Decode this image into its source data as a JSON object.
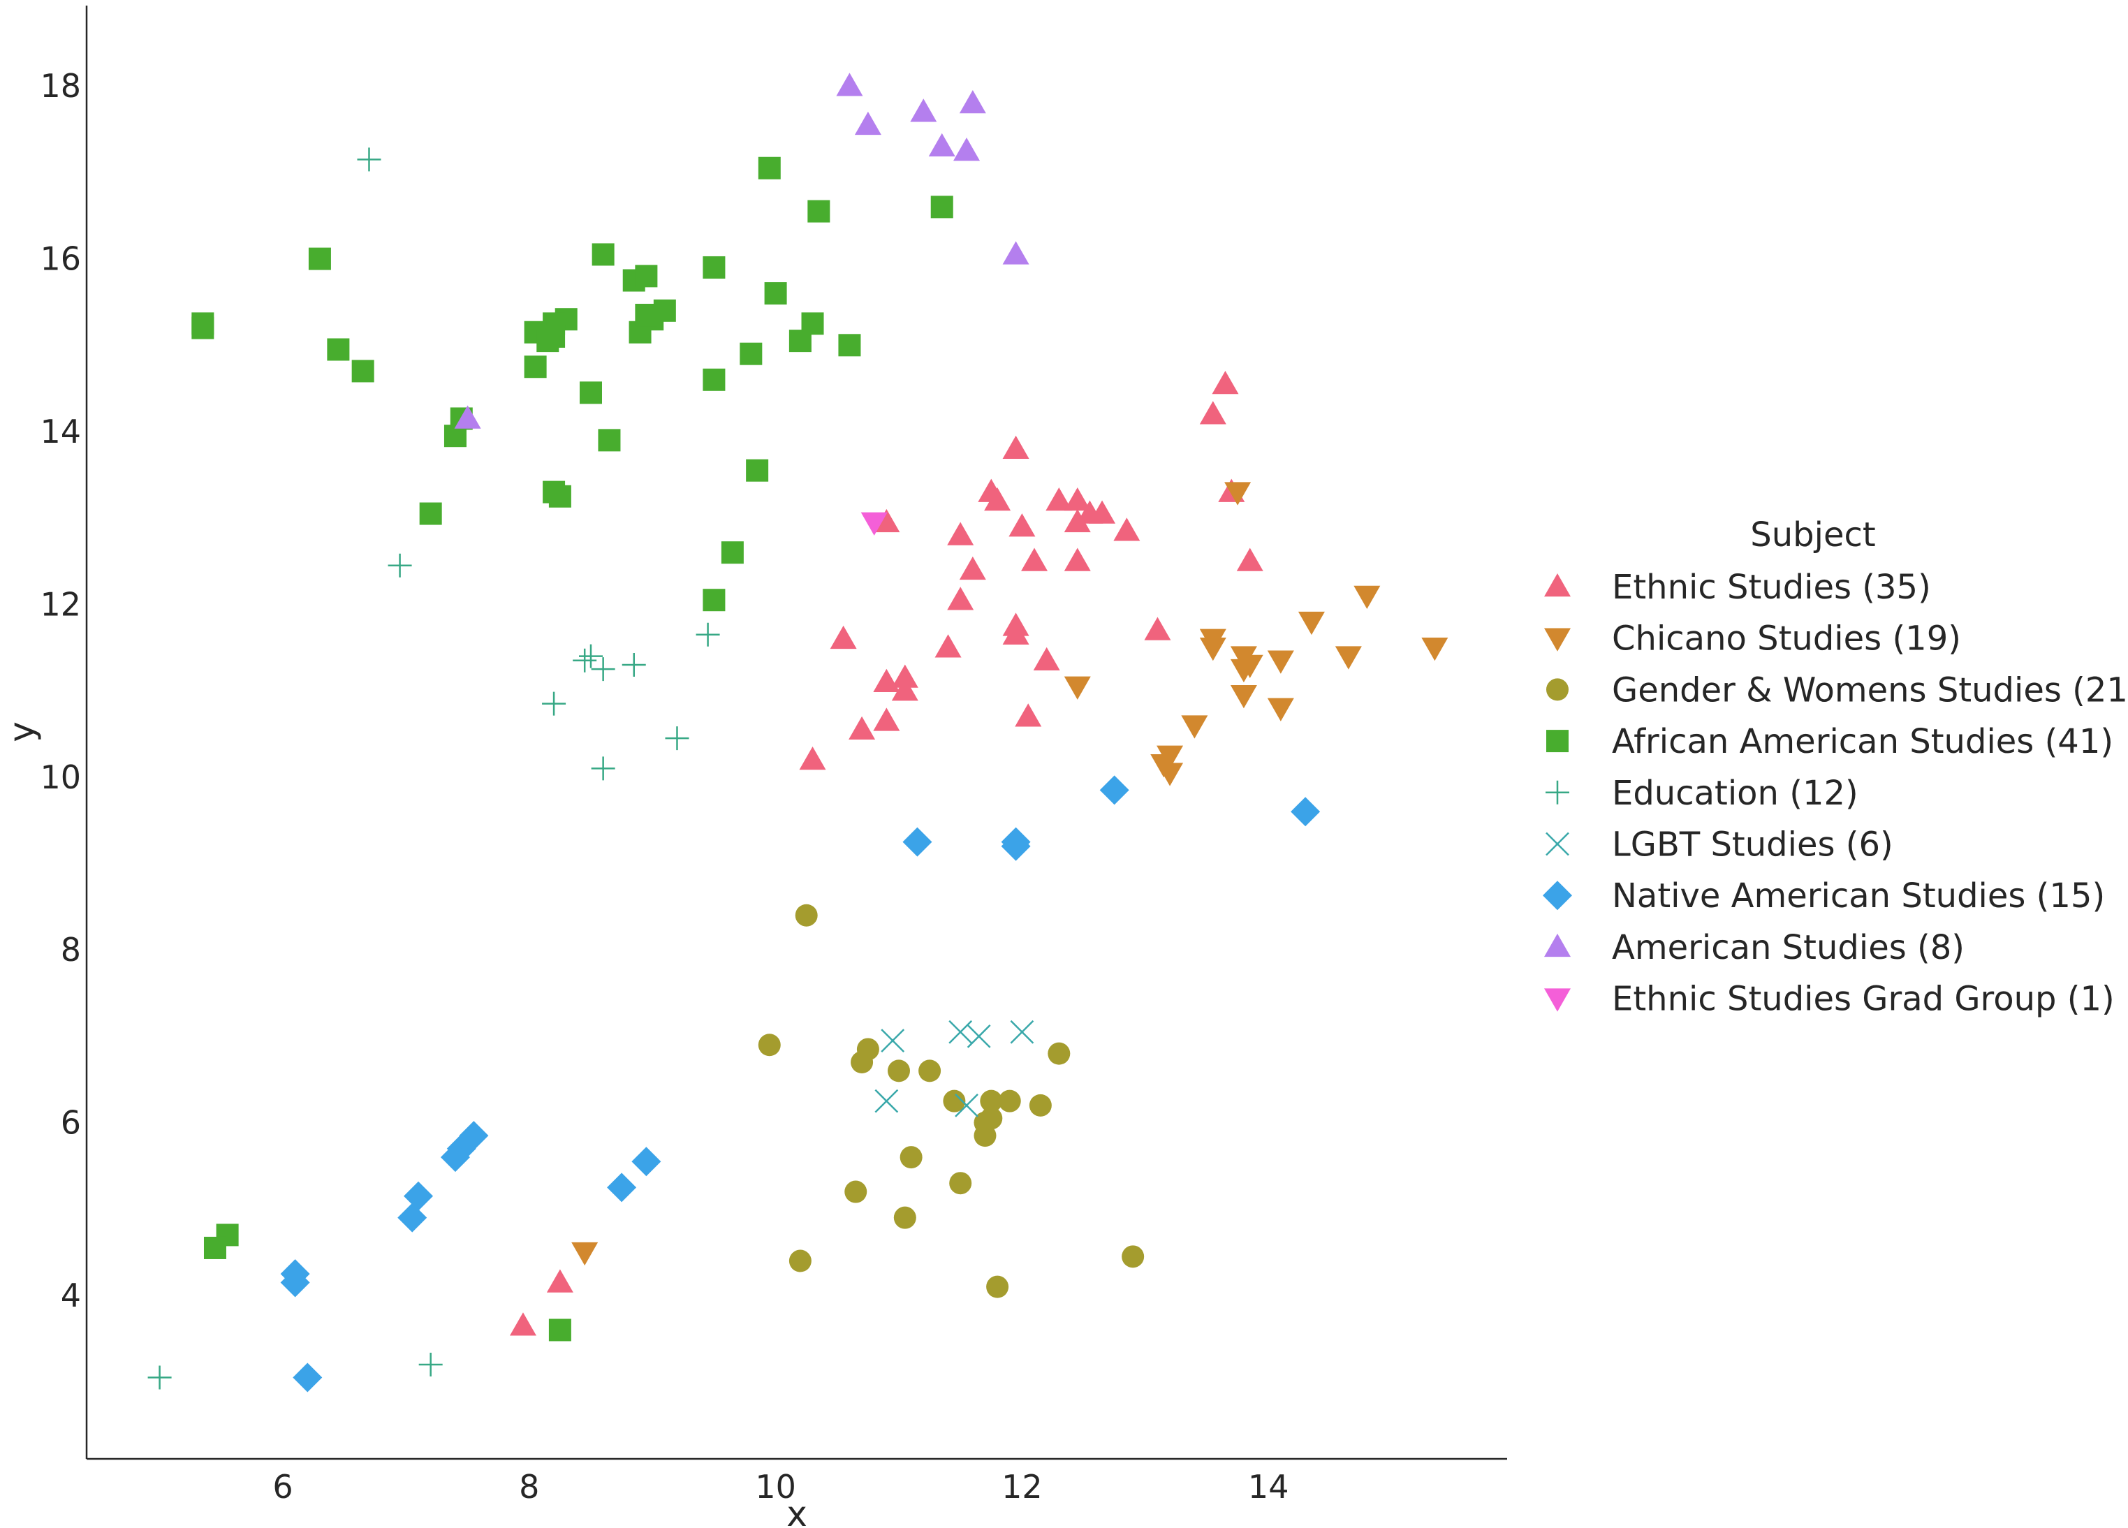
{
  "chart_data": {
    "type": "scatter",
    "title": "",
    "xlabel": "x",
    "ylabel": "y",
    "xlim": [
      4.4,
      15.9
    ],
    "ylim": [
      2.1,
      18.9
    ],
    "x_ticks": [
      "6",
      "8",
      "10",
      "12",
      "14"
    ],
    "y_ticks": [
      "4",
      "6",
      "8",
      "10",
      "12",
      "14",
      "16",
      "18"
    ],
    "grid": false,
    "legend_title": "Subject",
    "legend_position": "right",
    "series": [
      {
        "name": "Ethnic Studies (35)",
        "marker": "triangle-up",
        "color": "#f0637d",
        "points": [
          [
            13.65,
            14.55
          ],
          [
            13.55,
            14.2
          ],
          [
            11.95,
            13.8
          ],
          [
            13.7,
            13.3
          ],
          [
            11.75,
            13.3
          ],
          [
            11.8,
            13.2
          ],
          [
            12.3,
            13.2
          ],
          [
            12.45,
            13.2
          ],
          [
            12.55,
            13.05
          ],
          [
            12.65,
            13.05
          ],
          [
            12.45,
            12.95
          ],
          [
            10.9,
            12.95
          ],
          [
            12.0,
            12.9
          ],
          [
            12.85,
            12.85
          ],
          [
            11.5,
            12.8
          ],
          [
            13.85,
            12.5
          ],
          [
            12.1,
            12.5
          ],
          [
            12.45,
            12.5
          ],
          [
            11.6,
            12.4
          ],
          [
            11.5,
            12.05
          ],
          [
            11.95,
            11.75
          ],
          [
            11.95,
            11.65
          ],
          [
            13.1,
            11.7
          ],
          [
            10.55,
            11.6
          ],
          [
            12.2,
            11.35
          ],
          [
            11.05,
            11.15
          ],
          [
            10.9,
            11.1
          ],
          [
            11.05,
            11.0
          ],
          [
            10.9,
            10.65
          ],
          [
            12.05,
            10.7
          ],
          [
            10.7,
            10.55
          ],
          [
            10.3,
            10.2
          ],
          [
            8.25,
            4.15
          ],
          [
            7.95,
            3.65
          ],
          [
            11.4,
            11.5
          ]
        ]
      },
      {
        "name": "Chicano Studies (19)",
        "marker": "triangle-down",
        "color": "#d2882e",
        "points": [
          [
            13.75,
            13.3
          ],
          [
            14.8,
            12.1
          ],
          [
            14.35,
            11.8
          ],
          [
            13.55,
            11.6
          ],
          [
            13.55,
            11.5
          ],
          [
            15.35,
            11.5
          ],
          [
            13.8,
            11.4
          ],
          [
            13.85,
            11.3
          ],
          [
            14.1,
            11.35
          ],
          [
            14.65,
            11.4
          ],
          [
            13.8,
            11.25
          ],
          [
            12.45,
            11.05
          ],
          [
            13.8,
            10.95
          ],
          [
            14.1,
            10.8
          ],
          [
            13.4,
            10.6
          ],
          [
            13.2,
            10.25
          ],
          [
            13.15,
            10.15
          ],
          [
            13.2,
            10.05
          ],
          [
            8.45,
            4.5
          ]
        ]
      },
      {
        "name": "Gender & Womens Studies (21)",
        "marker": "circle",
        "color": "#a49c2e",
        "points": [
          [
            10.25,
            8.4
          ],
          [
            9.95,
            6.9
          ],
          [
            10.75,
            6.85
          ],
          [
            12.3,
            6.8
          ],
          [
            10.7,
            6.7
          ],
          [
            11.0,
            6.6
          ],
          [
            11.25,
            6.6
          ],
          [
            11.45,
            6.25
          ],
          [
            11.75,
            6.25
          ],
          [
            11.9,
            6.25
          ],
          [
            12.15,
            6.2
          ],
          [
            11.75,
            6.05
          ],
          [
            11.7,
            5.85
          ],
          [
            11.1,
            5.6
          ],
          [
            11.5,
            5.3
          ],
          [
            10.65,
            5.2
          ],
          [
            11.05,
            4.9
          ],
          [
            10.2,
            4.4
          ],
          [
            12.9,
            4.45
          ],
          [
            11.8,
            4.1
          ],
          [
            11.7,
            6.0
          ]
        ]
      },
      {
        "name": "African American Studies (41)",
        "marker": "square",
        "color": "#48ad2e",
        "points": [
          [
            9.95,
            17.05
          ],
          [
            10.35,
            16.55
          ],
          [
            11.35,
            16.6
          ],
          [
            6.3,
            16.0
          ],
          [
            8.6,
            16.05
          ],
          [
            9.5,
            15.9
          ],
          [
            8.85,
            15.75
          ],
          [
            8.95,
            15.8
          ],
          [
            10.0,
            15.6
          ],
          [
            9.1,
            15.4
          ],
          [
            9.0,
            15.3
          ],
          [
            8.3,
            15.3
          ],
          [
            8.2,
            15.25
          ],
          [
            10.3,
            15.25
          ],
          [
            5.35,
            15.25
          ],
          [
            5.35,
            15.2
          ],
          [
            8.05,
            15.15
          ],
          [
            8.9,
            15.15
          ],
          [
            8.15,
            15.05
          ],
          [
            10.2,
            15.05
          ],
          [
            10.6,
            15.0
          ],
          [
            6.45,
            14.95
          ],
          [
            9.8,
            14.9
          ],
          [
            8.05,
            14.75
          ],
          [
            6.65,
            14.7
          ],
          [
            9.5,
            14.6
          ],
          [
            8.5,
            14.45
          ],
          [
            7.45,
            14.15
          ],
          [
            7.4,
            13.95
          ],
          [
            8.65,
            13.9
          ],
          [
            9.85,
            13.55
          ],
          [
            8.2,
            13.3
          ],
          [
            8.25,
            13.25
          ],
          [
            7.2,
            13.05
          ],
          [
            9.65,
            12.6
          ],
          [
            9.5,
            12.05
          ],
          [
            5.55,
            4.7
          ],
          [
            5.45,
            4.55
          ],
          [
            8.25,
            3.6
          ],
          [
            8.2,
            15.1
          ],
          [
            8.95,
            15.35
          ]
        ]
      },
      {
        "name": "Education (12)",
        "marker": "plus",
        "color": "#37a885",
        "points": [
          [
            6.7,
            17.15
          ],
          [
            6.95,
            12.45
          ],
          [
            9.45,
            11.65
          ],
          [
            8.45,
            11.35
          ],
          [
            8.5,
            11.4
          ],
          [
            8.6,
            11.25
          ],
          [
            8.85,
            11.3
          ],
          [
            8.2,
            10.85
          ],
          [
            9.2,
            10.45
          ],
          [
            8.6,
            10.1
          ],
          [
            7.2,
            3.2
          ],
          [
            5.0,
            3.05
          ]
        ]
      },
      {
        "name": "LGBT Studies (6)",
        "marker": "x",
        "color": "#39a8aa",
        "points": [
          [
            11.5,
            7.05
          ],
          [
            11.65,
            7.0
          ],
          [
            12.0,
            7.05
          ],
          [
            10.95,
            6.95
          ],
          [
            10.9,
            6.25
          ],
          [
            11.55,
            6.2
          ]
        ]
      },
      {
        "name": "Native American Studies (15)",
        "marker": "diamond",
        "color": "#3ba3e8",
        "points": [
          [
            12.75,
            9.85
          ],
          [
            14.3,
            9.6
          ],
          [
            11.15,
            9.25
          ],
          [
            11.95,
            9.25
          ],
          [
            11.95,
            9.2
          ],
          [
            7.55,
            5.85
          ],
          [
            7.45,
            5.7
          ],
          [
            7.4,
            5.6
          ],
          [
            8.95,
            5.55
          ],
          [
            8.75,
            5.25
          ],
          [
            7.1,
            5.15
          ],
          [
            7.05,
            4.9
          ],
          [
            6.1,
            4.25
          ],
          [
            6.1,
            4.15
          ],
          [
            6.2,
            3.05
          ]
        ]
      },
      {
        "name": "American Studies (8)",
        "marker": "triangle-up",
        "color": "#b47fee",
        "points": [
          [
            10.6,
            18.0
          ],
          [
            11.6,
            17.8
          ],
          [
            11.2,
            17.7
          ],
          [
            10.75,
            17.55
          ],
          [
            11.35,
            17.3
          ],
          [
            11.55,
            17.25
          ],
          [
            11.95,
            16.05
          ],
          [
            7.5,
            14.15
          ]
        ]
      },
      {
        "name": "Ethnic Studies Grad Group (1)",
        "marker": "triangle-down",
        "color": "#f45fd8",
        "points": [
          [
            10.8,
            12.95
          ]
        ]
      }
    ]
  }
}
